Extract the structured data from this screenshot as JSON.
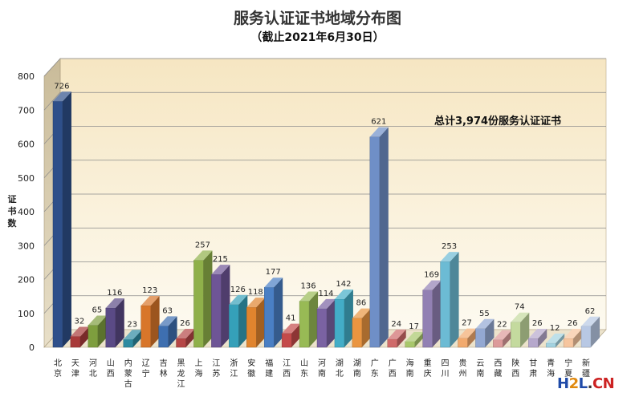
{
  "chart_data": {
    "type": "bar",
    "title": "服务认证证书地域分布图",
    "subtitle": "（截止2021年6月30日）",
    "ylabel": "证书数",
    "ylim": [
      0,
      800
    ],
    "yticks": [
      0,
      100,
      200,
      300,
      400,
      500,
      600,
      700,
      800
    ],
    "annotation": "总计3,974份服务认证证书",
    "categories": [
      "北京",
      "天津",
      "河北",
      "山西",
      "内蒙古",
      "辽宁",
      "吉林",
      "黑龙江",
      "上海",
      "江苏",
      "浙江",
      "安徽",
      "福建",
      "江西",
      "山东",
      "河南",
      "湖北",
      "湖南",
      "广东",
      "广西",
      "海南",
      "重庆",
      "四川",
      "贵州",
      "云南",
      "西藏",
      "陕西",
      "甘肃",
      "青海",
      "宁夏",
      "新疆"
    ],
    "values": [
      726,
      32,
      65,
      116,
      23,
      123,
      63,
      26,
      257,
      215,
      126,
      118,
      177,
      41,
      136,
      114,
      142,
      86,
      621,
      24,
      17,
      169,
      253,
      27,
      55,
      22,
      74,
      26,
      12,
      26,
      62
    ],
    "colors": [
      "#2e4f8a",
      "#a83a3a",
      "#7e9e3e",
      "#5a4a86",
      "#2d8aa0",
      "#d8762a",
      "#3e6fb0",
      "#b54646",
      "#8fb04a",
      "#6e5596",
      "#35a0b9",
      "#e0842e",
      "#4a7fc4",
      "#c44a4a",
      "#98ba55",
      "#7a62a2",
      "#43adc7",
      "#ea9540",
      "#6f8fc7",
      "#cf6a6a",
      "#a8c76b",
      "#9280b3",
      "#6cbbd4",
      "#f2aa6e",
      "#93a8d2",
      "#dc9a9a",
      "#c4da9e",
      "#b6a8cc",
      "#a2d2e0",
      "#f6c59e",
      "#b8c8e4"
    ],
    "grid": true
  },
  "watermark": {
    "h": "H",
    "two": "2",
    "l": "L",
    "dot": ".",
    "cn": "CN"
  }
}
